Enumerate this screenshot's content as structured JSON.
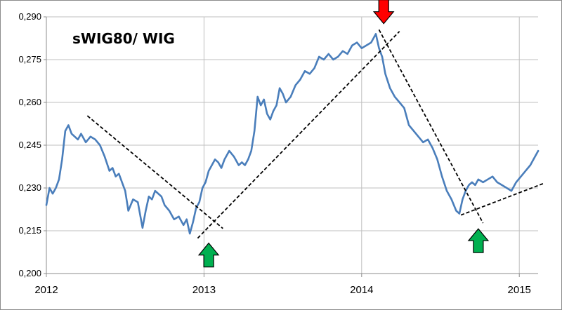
{
  "chart_data": {
    "type": "line",
    "title": "sWIG80/ WIG",
    "xlabel": "",
    "ylabel": "",
    "x_ticks": [
      "2012",
      "2013",
      "2014",
      "2015"
    ],
    "x_tick_values": [
      2012,
      2013,
      2014,
      2015
    ],
    "xlim": [
      2012.0,
      2015.12
    ],
    "y_ticks": [
      "0,200",
      "0,215",
      "0,230",
      "0,245",
      "0,260",
      "0,275",
      "0,290"
    ],
    "y_tick_values": [
      0.2,
      0.215,
      0.23,
      0.245,
      0.26,
      0.275,
      0.29
    ],
    "ylim": [
      0.2,
      0.29
    ],
    "grid": "vertical and horizontal",
    "legend": "none",
    "series": [
      {
        "color": "#4a7ebb",
        "x": [
          2012.0,
          2012.02,
          2012.04,
          2012.06,
          2012.08,
          2012.1,
          2012.12,
          2012.14,
          2012.16,
          2012.18,
          2012.2,
          2012.22,
          2012.25,
          2012.28,
          2012.31,
          2012.34,
          2012.37,
          2012.4,
          2012.42,
          2012.44,
          2012.46,
          2012.48,
          2012.5,
          2012.52,
          2012.55,
          2012.58,
          2012.61,
          2012.63,
          2012.65,
          2012.67,
          2012.69,
          2012.71,
          2012.73,
          2012.75,
          2012.78,
          2012.81,
          2012.84,
          2012.87,
          2012.89,
          2012.91,
          2012.93,
          2012.95,
          2012.97,
          2012.99,
          2013.01,
          2013.03,
          2013.05,
          2013.07,
          2013.09,
          2013.11,
          2013.13,
          2013.16,
          2013.19,
          2013.22,
          2013.24,
          2013.26,
          2013.28,
          2013.3,
          2013.32,
          2013.34,
          2013.36,
          2013.38,
          2013.4,
          2013.42,
          2013.44,
          2013.46,
          2013.48,
          2013.5,
          2013.52,
          2013.55,
          2013.58,
          2013.61,
          2013.64,
          2013.67,
          2013.7,
          2013.73,
          2013.76,
          2013.79,
          2013.82,
          2013.85,
          2013.88,
          2013.91,
          2013.94,
          2013.97,
          2014.0,
          2014.03,
          2014.06,
          2014.09,
          2014.11,
          2014.13,
          2014.15,
          2014.18,
          2014.21,
          2014.24,
          2014.27,
          2014.3,
          2014.33,
          2014.36,
          2014.39,
          2014.42,
          2014.45,
          2014.48,
          2014.51,
          2014.54,
          2014.57,
          2014.6,
          2014.62,
          2014.64,
          2014.66,
          2014.68,
          2014.7,
          2014.72,
          2014.74,
          2014.77,
          2014.8,
          2014.83,
          2014.86,
          2014.89,
          2014.92,
          2014.95,
          2014.98,
          2015.01,
          2015.04,
          2015.07,
          2015.1,
          2015.12
        ],
        "values": [
          0.224,
          0.23,
          0.228,
          0.23,
          0.233,
          0.24,
          0.25,
          0.252,
          0.249,
          0.248,
          0.247,
          0.249,
          0.246,
          0.248,
          0.247,
          0.245,
          0.241,
          0.236,
          0.237,
          0.234,
          0.235,
          0.232,
          0.229,
          0.222,
          0.226,
          0.225,
          0.216,
          0.222,
          0.227,
          0.226,
          0.229,
          0.228,
          0.227,
          0.224,
          0.222,
          0.219,
          0.22,
          0.217,
          0.219,
          0.214,
          0.218,
          0.223,
          0.225,
          0.23,
          0.232,
          0.236,
          0.238,
          0.24,
          0.239,
          0.237,
          0.24,
          0.243,
          0.241,
          0.238,
          0.239,
          0.238,
          0.24,
          0.243,
          0.25,
          0.262,
          0.259,
          0.261,
          0.256,
          0.254,
          0.257,
          0.259,
          0.265,
          0.263,
          0.26,
          0.262,
          0.266,
          0.268,
          0.271,
          0.27,
          0.272,
          0.276,
          0.275,
          0.277,
          0.275,
          0.276,
          0.278,
          0.277,
          0.28,
          0.281,
          0.279,
          0.28,
          0.281,
          0.284,
          0.279,
          0.276,
          0.27,
          0.265,
          0.262,
          0.26,
          0.258,
          0.252,
          0.25,
          0.248,
          0.246,
          0.247,
          0.244,
          0.24,
          0.234,
          0.229,
          0.226,
          0.222,
          0.221,
          0.226,
          0.229,
          0.231,
          0.232,
          0.231,
          0.233,
          0.232,
          0.233,
          0.234,
          0.232,
          0.231,
          0.23,
          0.229,
          0.232,
          0.234,
          0.236,
          0.238,
          0.241,
          0.243
        ]
      }
    ],
    "trendlines": [
      {
        "x": [
          2012.26,
          2013.12
        ],
        "values": [
          0.2553,
          0.2158
        ]
      },
      {
        "x": [
          2012.96,
          2014.24
        ],
        "values": [
          0.2124,
          0.2849
        ]
      },
      {
        "x": [
          2014.11,
          2014.77
        ],
        "values": [
          0.2855,
          0.2177
        ]
      },
      {
        "x": [
          2014.63,
          2015.15
        ],
        "values": [
          0.2205,
          0.2315
        ]
      }
    ],
    "annotations": [
      {
        "kind": "arrow-down",
        "color": "#ff0000",
        "x": 2014.14,
        "value": 0.2918
      },
      {
        "kind": "arrow-up",
        "color": "#00b050",
        "x": 2013.03,
        "value": 0.2065
      },
      {
        "kind": "arrow-up",
        "color": "#00b050",
        "x": 2014.74,
        "value": 0.2115
      }
    ]
  }
}
